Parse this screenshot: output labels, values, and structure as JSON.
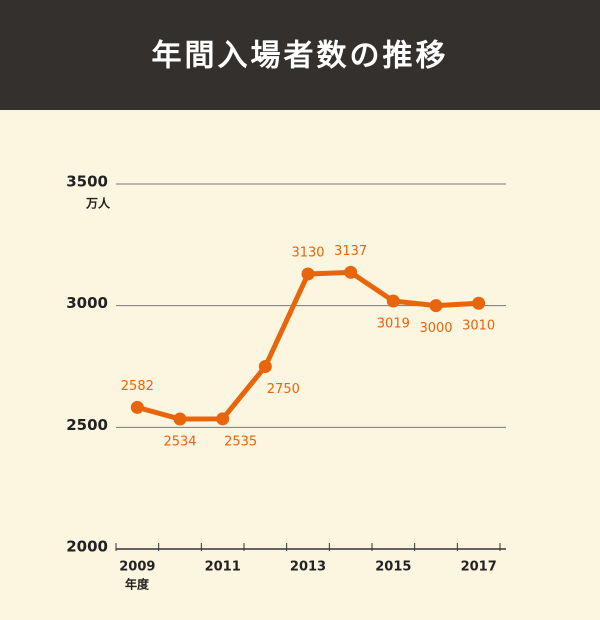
{
  "chart_data": {
    "type": "line",
    "title": "年間入場者数の推移",
    "y_unit": "万人",
    "x_unit": "年度",
    "categories": [
      "2009",
      null,
      "2011",
      null,
      "2013",
      null,
      "2015",
      null,
      "2017"
    ],
    "series": [
      {
        "name": "入場者数",
        "color": "#e8650c",
        "values": [
          2582,
          2534,
          2535,
          2750,
          3130,
          3137,
          3019,
          3000,
          3010
        ]
      }
    ],
    "ylim": [
      2000,
      3500
    ],
    "yticks": [
      2000,
      2500,
      3000,
      3500
    ],
    "grid": true
  }
}
